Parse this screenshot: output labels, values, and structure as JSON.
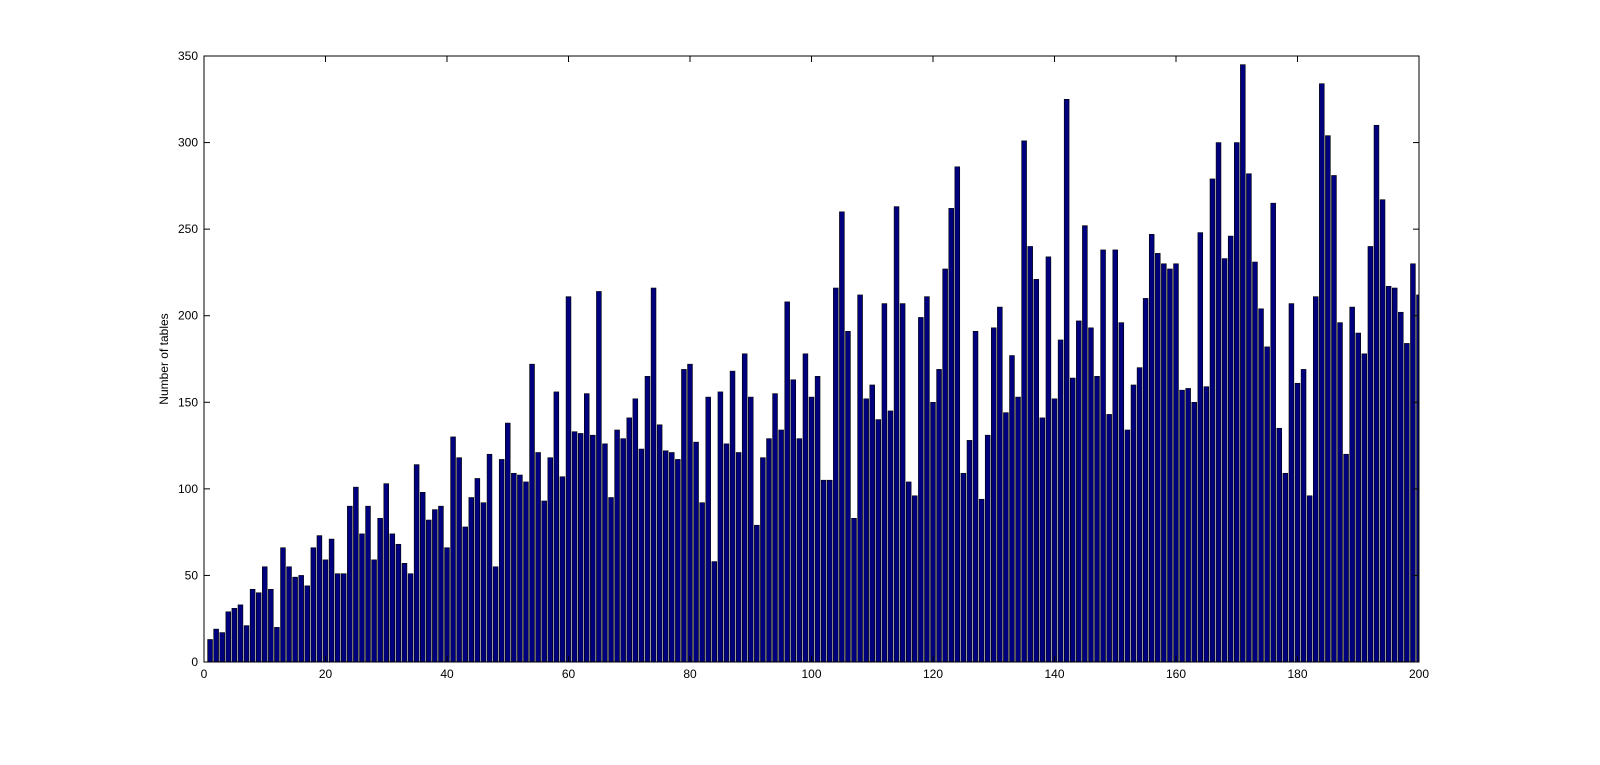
{
  "chart_data": {
    "type": "bar",
    "title": "",
    "xlabel": "",
    "ylabel": "Number of tables",
    "xlim": [
      0,
      200
    ],
    "ylim": [
      0,
      350
    ],
    "xticks": [
      0,
      20,
      40,
      60,
      80,
      100,
      120,
      140,
      160,
      180,
      200
    ],
    "yticks": [
      0,
      50,
      100,
      150,
      200,
      250,
      300,
      350
    ],
    "grid": false,
    "colors": {
      "bar_fill": "#00007f",
      "bar_edge": "#000000",
      "axes": "#000000",
      "background": "#ffffff"
    },
    "x": [
      1,
      2,
      3,
      4,
      5,
      6,
      7,
      8,
      9,
      10,
      11,
      12,
      13,
      14,
      15,
      16,
      17,
      18,
      19,
      20,
      21,
      22,
      23,
      24,
      25,
      26,
      27,
      28,
      29,
      30,
      31,
      32,
      33,
      34,
      35,
      36,
      37,
      38,
      39,
      40,
      41,
      42,
      43,
      44,
      45,
      46,
      47,
      48,
      49,
      50,
      51,
      52,
      53,
      54,
      55,
      56,
      57,
      58,
      59,
      60,
      61,
      62,
      63,
      64,
      65,
      66,
      67,
      68,
      69,
      70,
      71,
      72,
      73,
      74,
      75,
      76,
      77,
      78,
      79,
      80,
      81,
      82,
      83,
      84,
      85,
      86,
      87,
      88,
      89,
      90,
      91,
      92,
      93,
      94,
      95,
      96,
      97,
      98,
      99,
      100,
      101,
      102,
      103,
      104,
      105,
      106,
      107,
      108,
      109,
      110,
      111,
      112,
      113,
      114,
      115,
      116,
      117,
      118,
      119,
      120,
      121,
      122,
      123,
      124,
      125,
      126,
      127,
      128,
      129,
      130,
      131,
      132,
      133,
      134,
      135,
      136,
      137,
      138,
      139,
      140,
      141,
      142,
      143,
      144,
      145,
      146,
      147,
      148,
      149,
      150,
      151,
      152,
      153,
      154,
      155,
      156,
      157,
      158,
      159,
      160,
      161,
      162,
      163,
      164,
      165,
      166,
      167,
      168,
      169,
      170,
      171,
      172,
      173,
      174,
      175,
      176,
      177,
      178,
      179,
      180,
      181,
      182,
      183,
      184,
      185,
      186,
      187,
      188,
      189,
      190,
      191,
      192,
      193,
      194,
      195,
      196,
      197,
      198,
      199,
      200
    ],
    "values": [
      13,
      19,
      17,
      29,
      31,
      33,
      21,
      42,
      40,
      55,
      42,
      20,
      66,
      55,
      49,
      50,
      44,
      66,
      73,
      59,
      71,
      51,
      51,
      90,
      101,
      74,
      90,
      59,
      83,
      103,
      74,
      68,
      57,
      51,
      114,
      98,
      82,
      88,
      90,
      66,
      130,
      118,
      78,
      95,
      106,
      92,
      120,
      55,
      117,
      138,
      109,
      108,
      104,
      172,
      121,
      93,
      118,
      156,
      107,
      211,
      133,
      132,
      155,
      131,
      214,
      126,
      95,
      134,
      129,
      141,
      152,
      123,
      165,
      216,
      137,
      122,
      121,
      117,
      169,
      172,
      127,
      92,
      153,
      58,
      156,
      126,
      168,
      121,
      178,
      153,
      79,
      118,
      129,
      155,
      134,
      208,
      163,
      129,
      178,
      153,
      165,
      105,
      105,
      216,
      260,
      191,
      83,
      212,
      152,
      160,
      140,
      207,
      145,
      263,
      207,
      104,
      96,
      199,
      211,
      150,
      169,
      227,
      262,
      286,
      109,
      128,
      191,
      94,
      131,
      193,
      205,
      144,
      177,
      153,
      301,
      240,
      221,
      141,
      234,
      152,
      186,
      325,
      164,
      197,
      252,
      193,
      165,
      238,
      143,
      238,
      196,
      134,
      160,
      170,
      210,
      247,
      236,
      230,
      227,
      230,
      157,
      158,
      150,
      248,
      159,
      279,
      300,
      233,
      246,
      300,
      345,
      282,
      231,
      204,
      182,
      265,
      135,
      109,
      207,
      161,
      169,
      96,
      211,
      334,
      304,
      281,
      196,
      120,
      205,
      190,
      178,
      240,
      310,
      267,
      217,
      216,
      202,
      184,
      230,
      212
    ]
  }
}
